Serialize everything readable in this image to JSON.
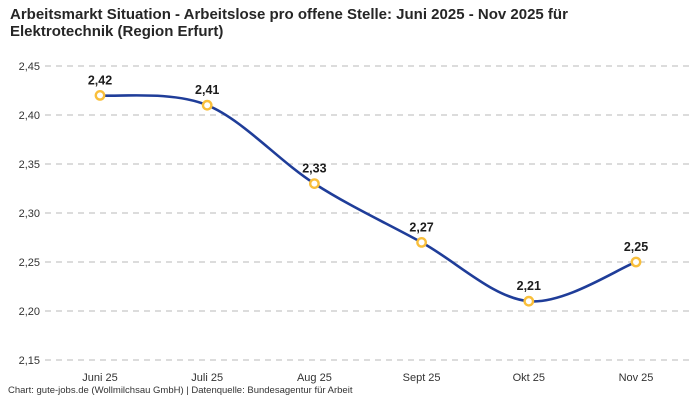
{
  "title": {
    "line1": "Arbeitsmarkt Situation - Arbeitslose pro offene Stelle: Juni 2025 - Nov 2025 für",
    "line2": "Elektrotechnik (Region Erfurt)"
  },
  "footer": {
    "text": "Chart: gute-jobs.de (Wollmilchsau GmbH) | Datenquelle: Bundesagentur für Arbeit"
  },
  "chart_data": {
    "type": "line",
    "title": "Arbeitsmarkt Situation - Arbeitslose pro offene Stelle: Juni 2025 - Nov 2025 für Elektrotechnik (Region Erfurt)",
    "categories": [
      "Juni 25",
      "Juli 25",
      "Aug 25",
      "Sept 25",
      "Okt 25",
      "Nov 25"
    ],
    "values": [
      2.42,
      2.41,
      2.33,
      2.27,
      2.21,
      2.25
    ],
    "value_labels": [
      "2,42",
      "2,41",
      "2,33",
      "2,27",
      "2,21",
      "2,25"
    ],
    "y_ticks": [
      2.45,
      2.4,
      2.35,
      2.3,
      2.25,
      2.2,
      2.15
    ],
    "y_tick_labels": [
      "2,45",
      "2,40",
      "2,35",
      "2,30",
      "2,25",
      "2,20",
      "2,15"
    ],
    "ylim": [
      2.15,
      2.45
    ],
    "xlabel": "",
    "ylabel": "",
    "grid": "horizontal-dashed",
    "legend": "none",
    "smooth": true,
    "colors": {
      "line": "#1f3d99",
      "marker_stroke": "#f9bf3b",
      "marker_fill": "#ffffff",
      "grid": "#c7c7c7",
      "tick_text": "#333333",
      "data_label_text": "#1d1d1d"
    }
  }
}
